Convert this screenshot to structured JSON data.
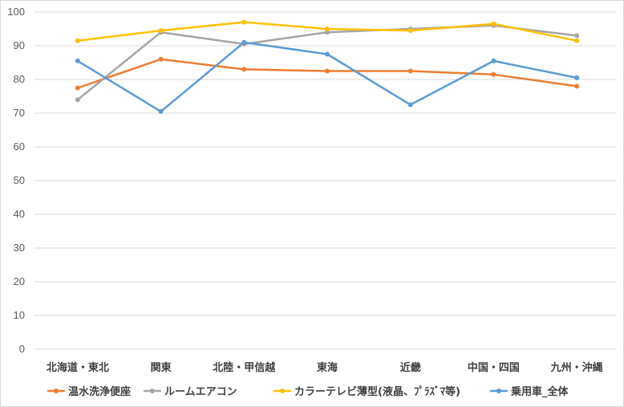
{
  "chart_data": {
    "type": "line",
    "title": "",
    "xlabel": "",
    "ylabel": "",
    "ylim": [
      0,
      100
    ],
    "yticks": [
      0,
      10,
      20,
      30,
      40,
      50,
      60,
      70,
      80,
      90,
      100
    ],
    "grid": "horizontal",
    "legend_position": "bottom",
    "categories": [
      "北海道・東北",
      "関東",
      "北陸・甲信越",
      "東海",
      "近畿",
      "中国・四国",
      "九州・沖縄"
    ],
    "series": [
      {
        "name": "温水洗浄便座",
        "color": "#ED7D31",
        "values": [
          77.5,
          86.0,
          83.0,
          82.5,
          82.5,
          81.5,
          78.0
        ]
      },
      {
        "name": "ルームエアコン",
        "color": "#A5A5A5",
        "values": [
          74.0,
          94.0,
          90.5,
          94.0,
          95.0,
          96.0,
          93.0
        ]
      },
      {
        "name": "カラーテレビ薄型(液晶、ﾌﾟﾗｽﾞﾏ等)",
        "color": "#FFC000",
        "values": [
          91.5,
          94.5,
          97.0,
          95.0,
          94.5,
          96.5,
          91.5
        ]
      },
      {
        "name": "乗用車_全体",
        "color": "#5B9BD5",
        "values": [
          85.5,
          70.5,
          91.0,
          87.5,
          72.5,
          85.5,
          80.5
        ]
      }
    ]
  }
}
